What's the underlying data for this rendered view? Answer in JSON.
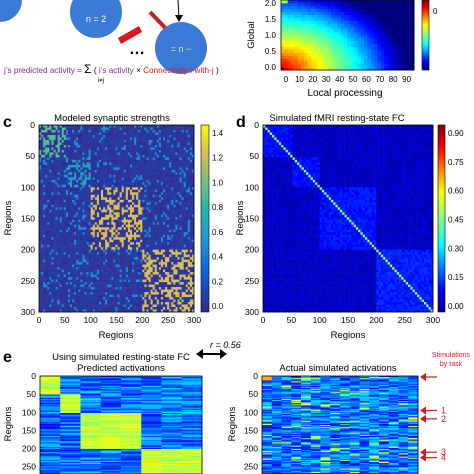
{
  "top_left": {
    "node_label": "n = 2",
    "ellipsis": "…",
    "formula": {
      "prefix": "j’s predicted activity = ",
      "sum_symbol": "Σ",
      "sum_index": "i≠j",
      "open": "(",
      "activity_term": "i’s activity",
      "times": " × ",
      "connectivity_term": "Connectivity i-with-j",
      "close": ")"
    }
  },
  "panel_b": {
    "ylabel": "Global",
    "xlabel": "Local processing",
    "xticks": [
      "0",
      "10",
      "20",
      "30",
      "40",
      "50",
      "60",
      "70",
      "80",
      "90"
    ],
    "yticks": [
      "0.0",
      "0.5",
      "1.0",
      "1.5",
      "2.0"
    ],
    "colorbar_tick": "0"
  },
  "panel_c": {
    "letter": "c",
    "title": "Modeled synaptic strengths",
    "xlabel": "Regions",
    "ylabel": "Regions",
    "ticks": [
      "0",
      "50",
      "100",
      "150",
      "200",
      "250",
      "300"
    ],
    "colorbar_ticks": [
      "0.0",
      "0.2",
      "0.4",
      "0.6",
      "0.8",
      "1.0",
      "1.2",
      "1.4"
    ]
  },
  "panel_d": {
    "letter": "d",
    "title": "Simulated fMRI resting-state FC",
    "xlabel": "Regions",
    "ylabel": "Regions",
    "ticks": [
      "0",
      "50",
      "100",
      "150",
      "200",
      "250",
      "300"
    ],
    "colorbar_ticks": [
      "0.00",
      "0.15",
      "0.30",
      "0.45",
      "0.60",
      "0.75",
      "0.90"
    ]
  },
  "panel_e": {
    "letter": "e",
    "left_title_1": "Using simulated resting-state FC",
    "left_title_2": "Predicted activations",
    "right_title": "Actual simulated activations",
    "r_label": "r = 0.56",
    "ylabel": "Regions",
    "yticks": [
      "0",
      "50",
      "100",
      "150",
      "200",
      "250"
    ],
    "stim_label_1": "Stimulations",
    "stim_label_2": "by task",
    "task_arrows": [
      "1",
      "2",
      "3",
      "4"
    ]
  },
  "colors": {
    "red": "#e0161b",
    "purple": "#7a2d8c",
    "arrow_red": "#d8151b"
  },
  "chart_data": [
    {
      "type": "heatmap",
      "panel": "b",
      "title": "",
      "xlabel": "Local processing",
      "ylabel": "Global",
      "x": [
        0,
        10,
        20,
        30,
        40,
        50,
        60,
        70,
        80,
        90
      ],
      "y": [
        0.0,
        0.5,
        1.0,
        1.5,
        2.0
      ],
      "colormap": "jet",
      "colorbar_visible_ticks": [
        0
      ]
    },
    {
      "type": "heatmap",
      "panel": "c",
      "title": "Modeled synaptic strengths",
      "xlabel": "Regions",
      "ylabel": "Regions",
      "xlim": [
        0,
        300
      ],
      "ylim": [
        300,
        0
      ],
      "colormap": "parula",
      "color_range": [
        0.0,
        1.4
      ],
      "blocks": [
        {
          "start": 0,
          "end": 50,
          "strength": 0.9
        },
        {
          "start": 50,
          "end": 100,
          "strength": 0.6
        },
        {
          "start": 100,
          "end": 200,
          "strength": 1.2
        },
        {
          "start": 200,
          "end": 300,
          "strength": 1.2
        }
      ]
    },
    {
      "type": "heatmap",
      "panel": "d",
      "title": "Simulated fMRI resting-state FC",
      "xlabel": "Regions",
      "ylabel": "Regions",
      "xlim": [
        0,
        300
      ],
      "ylim": [
        300,
        0
      ],
      "colormap": "jet",
      "color_range": [
        0.0,
        0.95
      ],
      "blocks": [
        {
          "start": 0,
          "end": 50,
          "fc": 0.12
        },
        {
          "start": 50,
          "end": 100,
          "fc": 0.12
        },
        {
          "start": 100,
          "end": 200,
          "fc": 0.13
        },
        {
          "start": 200,
          "end": 300,
          "fc": 0.14
        }
      ]
    },
    {
      "type": "heatmap",
      "panel": "e",
      "title": "Predicted activations",
      "ylabel": "Regions",
      "colormap": "jet",
      "block_columns": [
        0,
        1,
        2,
        2,
        2,
        3,
        3,
        3
      ]
    },
    {
      "type": "heatmap",
      "panel": "e",
      "title": "Actual simulated activations",
      "ylabel": "Regions",
      "colormap": "jet",
      "pearson_r": 0.56,
      "stimulated_regions_by_task": [
        {
          "task": "1",
          "region": 95
        },
        {
          "task": "2",
          "region": 118
        },
        {
          "task": "3",
          "region": 210
        },
        {
          "task": "4",
          "region": 225
        }
      ]
    }
  ]
}
